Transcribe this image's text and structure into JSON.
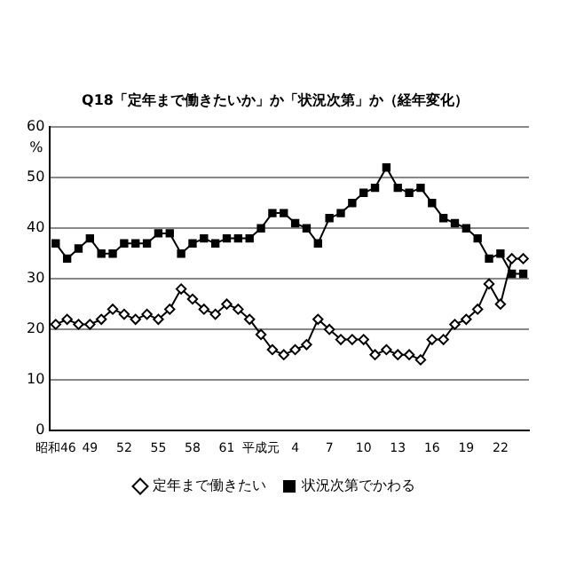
{
  "chart_data": {
    "type": "line",
    "title": "Q18「定年まで働きたいか」か「状況次第」か（経年変化）",
    "ylabel": "%",
    "categories": [
      "昭和46",
      null,
      null,
      "49",
      null,
      null,
      "52",
      null,
      null,
      "55",
      null,
      null,
      "58",
      null,
      null,
      "61",
      null,
      null,
      "平成元",
      null,
      null,
      "4",
      null,
      null,
      "7",
      null,
      null,
      "10",
      null,
      null,
      "13",
      null,
      null,
      "16",
      null,
      null,
      "19",
      null,
      null,
      "22",
      null,
      null
    ],
    "series": [
      {
        "name": "定年まで働きたい",
        "color": "#000000",
        "marker": "diamond",
        "values": [
          21,
          22,
          21,
          21,
          22,
          24,
          23,
          22,
          23,
          22,
          24,
          28,
          26,
          24,
          23,
          25,
          24,
          22,
          19,
          16,
          15,
          16,
          17,
          22,
          20,
          18,
          18,
          18,
          15,
          16,
          15,
          15,
          14,
          18,
          18,
          21,
          22,
          24,
          29,
          25,
          34,
          34
        ]
      },
      {
        "name": "状況次第でかわる",
        "color": "#000000",
        "marker": "square",
        "values": [
          37,
          34,
          36,
          38,
          35,
          35,
          37,
          37,
          37,
          39,
          39,
          35,
          37,
          38,
          37,
          38,
          38,
          38,
          40,
          43,
          43,
          41,
          40,
          37,
          42,
          43,
          45,
          47,
          48,
          52,
          48,
          47,
          48,
          45,
          42,
          41,
          40,
          38,
          34,
          35,
          31,
          31
        ]
      }
    ],
    "ylim": [
      0,
      60
    ],
    "yticks": [
      0,
      10,
      20,
      30,
      40,
      50,
      60
    ],
    "grid": "y",
    "legend": "bottom",
    "line_style": "solid"
  }
}
